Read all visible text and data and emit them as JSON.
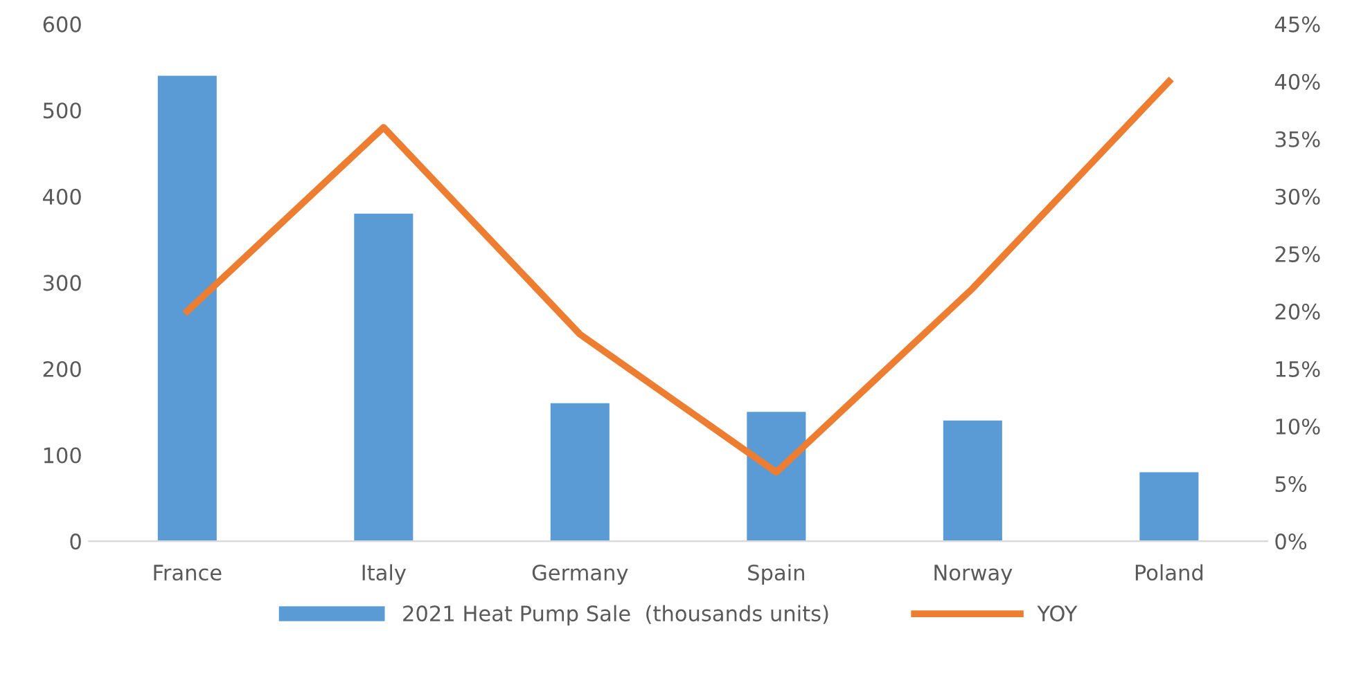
{
  "chart_data": {
    "type": "bar",
    "categories": [
      "France",
      "Italy",
      "Germany",
      "Spain",
      "Norway",
      "Poland"
    ],
    "series": [
      {
        "name": "2021 Heat Pump Sale  (thousands units)",
        "color": "#5b9bd5",
        "values": [
          540,
          380,
          160,
          150,
          140,
          80
        ]
      },
      {
        "name": "YOY",
        "type": "line",
        "axis": "y2",
        "color": "#ed7d31",
        "values": [
          20,
          36,
          18,
          6,
          22,
          40
        ]
      }
    ],
    "ylim": [
      0,
      600
    ],
    "yticks": [
      0,
      100,
      200,
      300,
      400,
      500,
      600
    ],
    "y2lim": [
      0,
      45
    ],
    "y2ticks": [
      {
        "value": 0,
        "label": "0%"
      },
      {
        "value": 5,
        "label": "5%"
      },
      {
        "value": 10,
        "label": "10%"
      },
      {
        "value": 15,
        "label": "15%"
      },
      {
        "value": 20,
        "label": "20%"
      },
      {
        "value": 25,
        "label": "25%"
      },
      {
        "value": 30,
        "label": "30%"
      },
      {
        "value": 35,
        "label": "35%"
      },
      {
        "value": 40,
        "label": "40%"
      },
      {
        "value": 45,
        "label": "45%"
      }
    ],
    "legend": "bottom",
    "grid": false,
    "marker": "none",
    "line_style": "solid"
  }
}
